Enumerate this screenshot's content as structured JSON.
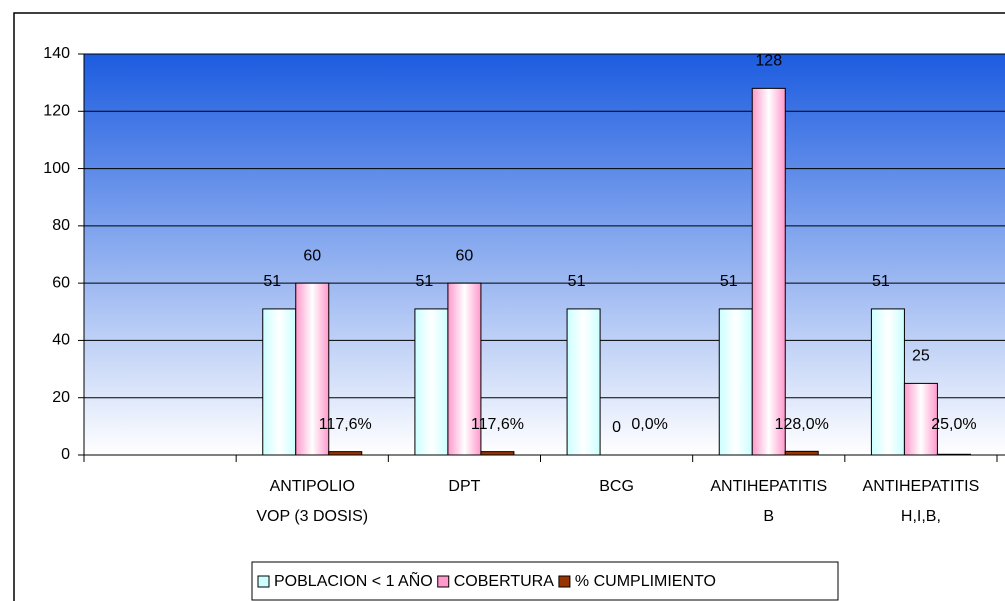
{
  "chart_data": {
    "type": "bar",
    "categories": [
      null,
      [
        "ANTIPOLIO",
        "VOP (3 DOSIS)"
      ],
      [
        "DPT"
      ],
      [
        "BCG"
      ],
      [
        "ANTIHEPATITIS",
        "B"
      ],
      [
        "ANTIHEPATITIS",
        "H,I,B,"
      ]
    ],
    "series": [
      {
        "name": "POBLACION < 1 AÑO",
        "color": "#ccffff",
        "values": [
          null,
          51,
          51,
          51,
          51,
          51
        ]
      },
      {
        "name": "COBERTURA",
        "color": "#ff99cc",
        "values": [
          null,
          60,
          60,
          0,
          128,
          25
        ]
      },
      {
        "name": "% CUMPLIMIENTO",
        "color": "#993300",
        "values": [
          null,
          1.176,
          1.176,
          0,
          1.28,
          0.25
        ],
        "value_labels": [
          null,
          "117,6%",
          "117,6%",
          "0,0%",
          "128,0%",
          "25,0%"
        ]
      }
    ],
    "ylim": [
      0,
      140
    ],
    "yticks": [
      0,
      20,
      40,
      60,
      80,
      100,
      120,
      140
    ],
    "grid": true,
    "legend": "bottom"
  }
}
